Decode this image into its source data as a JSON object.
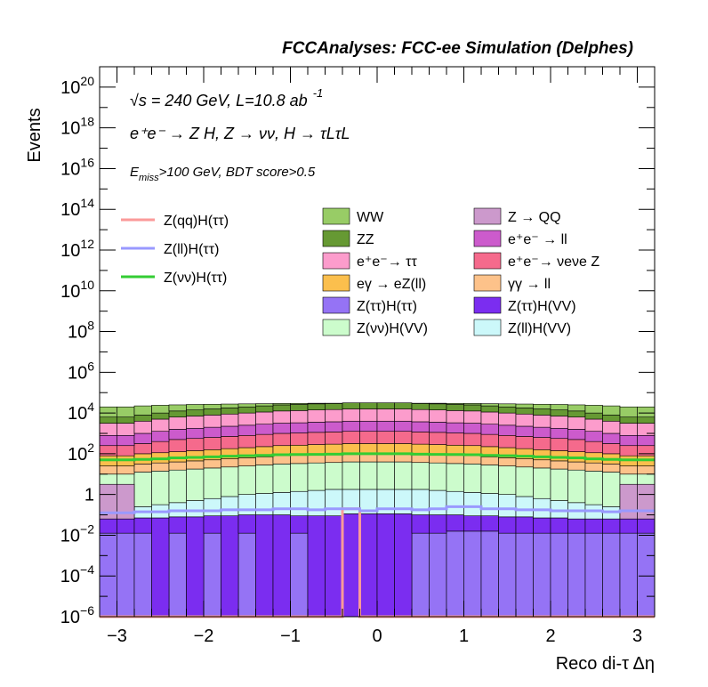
{
  "header": {
    "title": "FCCAnalyses: FCC-ee Simulation (Delphes)"
  },
  "annotations": {
    "energy_prefix": "√s = 240 GeV, L=10.8 ab",
    "energy_exp": "-1",
    "process": "e⁺e⁻ → Z H, Z → νν, H → τLτL",
    "cut_prefix": "E",
    "cut_sub": "miss",
    "cut_suffix": ">100 GeV, BDT score>0.5"
  },
  "chart_data": {
    "type": "area",
    "stacked": true,
    "xlabel": "Reco di-τ Δη",
    "ylabel": "Events",
    "xlim": [
      -3.2,
      3.2
    ],
    "ylim": [
      1e-06,
      1e+21
    ],
    "y_log": true,
    "x_ticks": [
      -3,
      -2,
      -1,
      0,
      1,
      2,
      3
    ],
    "x_tick_labels": [
      "−3",
      "−2",
      "−1",
      "0",
      "1",
      "2",
      "3"
    ],
    "y_tick_exponents": [
      -6,
      -4,
      -2,
      0,
      2,
      4,
      6,
      8,
      10,
      12,
      14,
      16,
      18,
      20
    ],
    "bins": 32,
    "stack_boundaries": [
      {
        "name": "Z(ττ)H(ττ)",
        "color": "#9573f5",
        "log10": [
          -1.9,
          -1.9,
          -1.9,
          -6,
          -1.9,
          -6,
          -1.9,
          -6,
          -1.9,
          -6,
          -6,
          -1.9,
          -6,
          -6,
          -6,
          -6,
          -6,
          -6,
          -1.9,
          -1.9,
          -1.8,
          -1.8,
          -1.8,
          -1.9,
          -1.9,
          -1.9,
          -1.9,
          -1.9,
          -1.9,
          -1.9,
          -1.9,
          -1.9
        ]
      },
      {
        "name": "Z(ττ)H(VV)",
        "color": "#7b2df0",
        "log10": [
          -1.2,
          -1.2,
          -1.15,
          -1.15,
          -1.1,
          -1.1,
          -1.05,
          -1.05,
          -1.0,
          -1.0,
          -1.0,
          -1.05,
          -1.05,
          -1.05,
          -0.95,
          -0.95,
          -0.95,
          -0.95,
          -1.0,
          -1.0,
          -1.0,
          -1.05,
          -1.05,
          -1.1,
          -1.1,
          -1.15,
          -1.15,
          -1.2,
          -1.2,
          -1.2,
          -1.2,
          -1.2
        ]
      },
      {
        "name": "Z(ll)H(VV)",
        "color": "#ccf8fa",
        "log10": [
          -0.9,
          -0.9,
          -0.6,
          -0.5,
          -0.4,
          -0.3,
          -0.2,
          -0.1,
          0.0,
          0.05,
          0.1,
          0.15,
          0.2,
          0.25,
          0.25,
          0.25,
          0.25,
          0.25,
          0.25,
          0.2,
          0.15,
          0.1,
          0.05,
          0.0,
          -0.1,
          -0.2,
          -0.3,
          -0.4,
          -0.5,
          -0.6,
          -0.9,
          -0.9
        ]
      },
      {
        "name": "Z(νν)H(VV)",
        "color": "#ccfccc",
        "log10": [
          1.0,
          1.0,
          1.1,
          1.15,
          1.2,
          1.25,
          1.3,
          1.35,
          1.4,
          1.45,
          1.5,
          1.52,
          1.55,
          1.57,
          1.6,
          1.6,
          1.6,
          1.6,
          1.57,
          1.55,
          1.52,
          1.5,
          1.45,
          1.4,
          1.35,
          1.3,
          1.25,
          1.2,
          1.15,
          1.1,
          1.0,
          1.0
        ]
      },
      {
        "name": "γγ → ll",
        "color": "#fdc28a",
        "log10": [
          1.4,
          1.4,
          1.5,
          1.55,
          1.6,
          1.65,
          1.7,
          1.75,
          1.8,
          1.85,
          1.9,
          1.92,
          1.95,
          1.97,
          2.0,
          2.0,
          2.0,
          2.0,
          1.97,
          1.95,
          1.92,
          1.9,
          1.85,
          1.8,
          1.75,
          1.7,
          1.65,
          1.6,
          1.55,
          1.5,
          1.4,
          1.4
        ]
      },
      {
        "name": "eγ → eZ(ll)",
        "color": "#fbbf4d",
        "log10": [
          1.9,
          1.9,
          2.0,
          2.05,
          2.1,
          2.15,
          2.2,
          2.25,
          2.3,
          2.35,
          2.4,
          2.42,
          2.45,
          2.47,
          2.5,
          2.5,
          2.5,
          2.5,
          2.47,
          2.45,
          2.42,
          2.4,
          2.35,
          2.3,
          2.25,
          2.2,
          2.15,
          2.1,
          2.05,
          2.0,
          1.9,
          1.9
        ]
      },
      {
        "name": "e⁺e⁻→ νeνe Z",
        "color": "#f56a8c",
        "log10": [
          2.4,
          2.4,
          2.5,
          2.6,
          2.7,
          2.75,
          2.8,
          2.85,
          2.9,
          2.95,
          3.0,
          3.02,
          3.05,
          3.07,
          3.1,
          3.1,
          3.1,
          3.1,
          3.07,
          3.05,
          3.02,
          3.0,
          2.95,
          2.9,
          2.85,
          2.8,
          2.75,
          2.7,
          2.6,
          2.5,
          2.4,
          2.4
        ]
      },
      {
        "name": "e⁺e⁻ → ll",
        "color": "#cc5bcc",
        "log10": [
          2.9,
          2.9,
          3.0,
          3.1,
          3.2,
          3.25,
          3.3,
          3.35,
          3.4,
          3.45,
          3.5,
          3.52,
          3.55,
          3.57,
          3.6,
          3.6,
          3.6,
          3.6,
          3.57,
          3.55,
          3.52,
          3.5,
          3.45,
          3.4,
          3.35,
          3.3,
          3.25,
          3.2,
          3.1,
          3.0,
          2.9,
          2.9
        ]
      },
      {
        "name": "e⁺e⁻→ ττ",
        "color": "#fc9ccc",
        "log10": [
          3.5,
          3.5,
          3.6,
          3.7,
          3.8,
          3.85,
          3.9,
          3.95,
          4.0,
          4.05,
          4.1,
          4.12,
          4.15,
          4.17,
          4.2,
          4.2,
          4.2,
          4.2,
          4.17,
          4.15,
          4.12,
          4.1,
          4.05,
          4.0,
          3.95,
          3.9,
          3.85,
          3.8,
          3.7,
          3.6,
          3.5,
          3.5
        ]
      },
      {
        "name": "ZZ",
        "color": "#669933",
        "log10": [
          3.8,
          3.8,
          3.9,
          4.0,
          4.1,
          4.15,
          4.2,
          4.25,
          4.3,
          4.35,
          4.4,
          4.42,
          4.45,
          4.47,
          4.5,
          4.5,
          4.5,
          4.5,
          4.47,
          4.45,
          4.42,
          4.4,
          4.35,
          4.3,
          4.25,
          4.2,
          4.15,
          4.1,
          4.0,
          3.9,
          3.8,
          3.8
        ]
      },
      {
        "name": "WW",
        "color": "#98cc66",
        "log10": [
          4.3,
          4.3,
          4.35,
          4.38,
          4.4,
          4.42,
          4.43,
          4.44,
          4.45,
          4.46,
          4.47,
          4.47,
          4.48,
          4.48,
          4.48,
          4.48,
          4.48,
          4.48,
          4.48,
          4.48,
          4.47,
          4.47,
          4.46,
          4.45,
          4.44,
          4.43,
          4.42,
          4.4,
          4.38,
          4.35,
          4.3,
          4.3
        ]
      }
    ],
    "zqq_background": {
      "name": "Z → QQ",
      "color": "#cc99cc",
      "log10": [
        0.5,
        0.5,
        -6,
        -6,
        -6,
        -6,
        -6,
        -6,
        -6,
        -6,
        -6,
        -6,
        -6,
        -6,
        -6,
        -6,
        -6,
        -6,
        -6,
        -6,
        -6,
        -6,
        -6,
        -6,
        -6,
        -6,
        -6,
        -6,
        -6,
        -6,
        0.5,
        0.5
      ]
    },
    "signal_lines": [
      {
        "name": "Z(qq)H(ττ)",
        "color": "#fb9a99",
        "log10": [
          -6,
          -6,
          -6,
          -6,
          -6,
          -6,
          -6,
          -6,
          -6,
          -6,
          -6,
          -6,
          -6,
          -6,
          -0.7,
          -6,
          -6,
          -6,
          -6,
          -6,
          -6,
          -6,
          -6,
          -6,
          -6,
          -6,
          -6,
          -6,
          -6,
          -6,
          -6,
          -6
        ]
      },
      {
        "name": "Z(ll)H(ττ)",
        "color": "#9999ff",
        "log10": [
          -0.9,
          -0.9,
          -0.85,
          -0.85,
          -0.8,
          -0.8,
          -0.8,
          -0.75,
          -0.75,
          -0.75,
          -0.7,
          -0.7,
          -0.75,
          -0.7,
          -0.7,
          -0.8,
          -0.7,
          -0.7,
          -0.75,
          -0.7,
          -0.6,
          -0.6,
          -0.7,
          -0.7,
          -0.75,
          -0.75,
          -0.8,
          -0.8,
          -0.8,
          -0.85,
          -0.8,
          -0.8
        ]
      },
      {
        "name": "Z(νν)H(ττ)",
        "color": "#33cc33",
        "log10": [
          1.7,
          1.7,
          1.72,
          1.75,
          1.8,
          1.82,
          1.85,
          1.88,
          1.9,
          1.92,
          1.95,
          1.96,
          1.97,
          1.98,
          2.0,
          2.0,
          2.0,
          2.0,
          1.98,
          1.97,
          1.96,
          1.95,
          1.92,
          1.9,
          1.88,
          1.85,
          1.82,
          1.8,
          1.75,
          1.72,
          1.7,
          1.7
        ]
      }
    ],
    "legend": {
      "lines": [
        {
          "label": "Z(qq)H(ττ)",
          "color": "#fb9a99"
        },
        {
          "label": "Z(ll)H(ττ)",
          "color": "#9999ff"
        },
        {
          "label": "Z(νν)H(ττ)",
          "color": "#33cc33"
        }
      ],
      "fills_col1": [
        {
          "label": "WW",
          "color": "#98cc66"
        },
        {
          "label": "ZZ",
          "color": "#669933"
        },
        {
          "label": "e⁺e⁻→ ττ",
          "color": "#fc9ccc"
        },
        {
          "label": "eγ → eZ(ll)",
          "color": "#fbbf4d"
        },
        {
          "label": "Z(ττ)H(ττ)",
          "color": "#9573f5"
        },
        {
          "label": "Z(νν)H(VV)",
          "color": "#ccfccc"
        }
      ],
      "fills_col2": [
        {
          "label": "Z → QQ",
          "color": "#cc99cc"
        },
        {
          "label": "e⁺e⁻ → ll",
          "color": "#cc5bcc"
        },
        {
          "label": "e⁺e⁻→ νeνe Z",
          "color": "#f56a8c"
        },
        {
          "label": "γγ → ll",
          "color": "#fdc28a"
        },
        {
          "label": "Z(ττ)H(VV)",
          "color": "#7b2df0"
        },
        {
          "label": "Z(ll)H(VV)",
          "color": "#ccf8fa"
        }
      ]
    }
  }
}
